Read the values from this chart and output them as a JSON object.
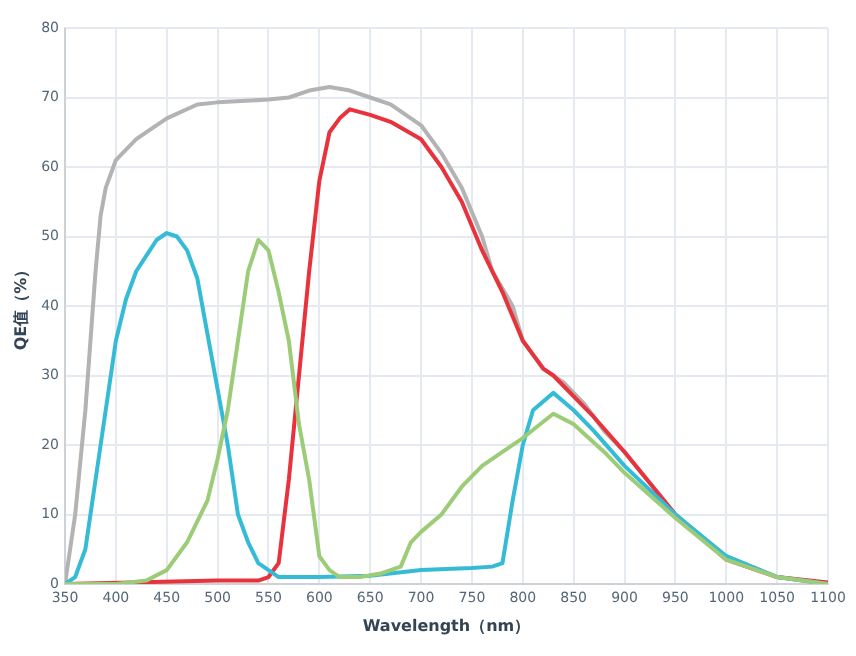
{
  "chart_data": {
    "type": "line",
    "xlabel": "Wavelength（nm）",
    "ylabel": "QE值（%）",
    "xlim": [
      350,
      1100
    ],
    "xticks": [
      350,
      400,
      450,
      500,
      550,
      600,
      650,
      700,
      750,
      800,
      850,
      900,
      950,
      1000,
      1050,
      1100
    ],
    "ylim": [
      0,
      80
    ],
    "yticks": [
      0,
      10,
      20,
      30,
      40,
      50,
      60,
      70,
      80
    ],
    "grid": true,
    "legend": false,
    "marker": "none",
    "line_style": "solid",
    "series": [
      {
        "color": "#b3b3b3",
        "x": [
          350,
          360,
          370,
          380,
          385,
          390,
          400,
          420,
          450,
          480,
          500,
          550,
          570,
          590,
          610,
          630,
          650,
          670,
          700,
          720,
          740,
          760,
          770,
          790,
          800,
          820,
          840,
          860,
          880,
          900,
          950,
          1000,
          1050,
          1100
        ],
        "values": [
          0,
          10,
          25,
          45,
          53,
          57,
          61,
          64,
          67,
          69,
          69.3,
          69.7,
          70,
          71,
          71.5,
          71,
          70,
          69,
          66,
          62,
          57,
          50,
          45,
          40,
          35,
          31,
          29,
          26,
          22,
          19,
          10,
          4,
          1,
          0
        ]
      },
      {
        "color": "#e8333c",
        "x": [
          350,
          500,
          540,
          550,
          560,
          570,
          580,
          590,
          600,
          610,
          620,
          630,
          650,
          670,
          700,
          720,
          740,
          760,
          780,
          800,
          810,
          820,
          830,
          850,
          870,
          900,
          950,
          1000,
          1050,
          1100
        ],
        "values": [
          0,
          0.5,
          0.5,
          1,
          3,
          15,
          30,
          45,
          58,
          65,
          67,
          68.3,
          67.5,
          66.5,
          64,
          60,
          55,
          48,
          42,
          35,
          33,
          31,
          30,
          27,
          24,
          19,
          10,
          3.5,
          1,
          0.2
        ]
      },
      {
        "color": "#36bbd6",
        "x": [
          350,
          360,
          370,
          380,
          390,
          400,
          410,
          420,
          440,
          450,
          460,
          470,
          480,
          490,
          500,
          510,
          520,
          530,
          540,
          550,
          560,
          600,
          650,
          700,
          750,
          770,
          780,
          790,
          800,
          810,
          830,
          850,
          870,
          900,
          950,
          1000,
          1050,
          1100
        ],
        "values": [
          0,
          1,
          5,
          15,
          25,
          35,
          41,
          45,
          49.5,
          50.5,
          50,
          48,
          44,
          36,
          28,
          20,
          10,
          6,
          3,
          2,
          1,
          1,
          1.2,
          2,
          2.3,
          2.5,
          3,
          12,
          20,
          25,
          27.5,
          25,
          22,
          17,
          10,
          4,
          1,
          0
        ]
      },
      {
        "color": "#9dcc79",
        "x": [
          350,
          400,
          430,
          450,
          470,
          490,
          500,
          510,
          520,
          530,
          540,
          550,
          560,
          570,
          580,
          590,
          600,
          610,
          620,
          640,
          660,
          680,
          690,
          700,
          720,
          740,
          760,
          780,
          800,
          830,
          850,
          880,
          900,
          950,
          1000,
          1050,
          1100
        ],
        "values": [
          0,
          0,
          0.5,
          2,
          6,
          12,
          18,
          25,
          35,
          45,
          49.5,
          48,
          42,
          35,
          23,
          15,
          4,
          2,
          1,
          1,
          1.5,
          2.5,
          6,
          7.5,
          10,
          14,
          17,
          19,
          21,
          24.5,
          23,
          19,
          16,
          9.5,
          3.5,
          1,
          0
        ]
      }
    ]
  }
}
